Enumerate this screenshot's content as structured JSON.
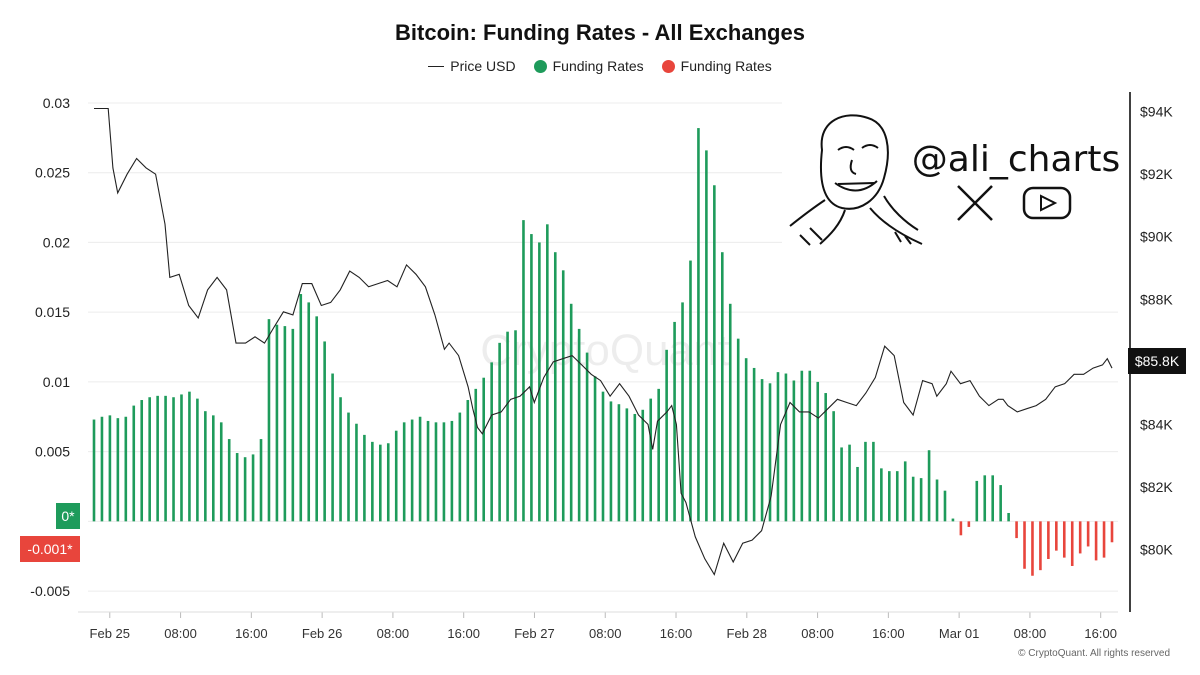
{
  "chart_data": {
    "type": "bar",
    "title": "Bitcoin: Funding Rates - All Exchanges",
    "legend": [
      {
        "name": "Price USD",
        "kind": "line",
        "color": "#222222"
      },
      {
        "name": "Funding Rates",
        "kind": "dot",
        "color": "#1e9b5b"
      },
      {
        "name": "Funding Rates",
        "kind": "dot",
        "color": "#e8453c"
      }
    ],
    "colors": {
      "positive": "#1e9b5b",
      "negative": "#e8453c",
      "price": "#222222"
    },
    "x_labels": [
      "Feb 25",
      "08:00",
      "16:00",
      "Feb 26",
      "08:00",
      "16:00",
      "Feb 27",
      "08:00",
      "16:00",
      "Feb 28",
      "08:00",
      "16:00",
      "Mar 01",
      "08:00",
      "16:00"
    ],
    "x_range_hours": [
      0,
      156
    ],
    "y_left": {
      "ticks": [
        "0.03",
        "0.025",
        "0.02",
        "0.015",
        "0.01",
        "0.005",
        "-0.005"
      ],
      "ylim": [
        -0.0065,
        0.0305
      ]
    },
    "y_right": {
      "ticks": [
        "$94K",
        "$92K",
        "$90K",
        "$88K",
        "$86K",
        "$84K",
        "$82K",
        "$80K"
      ],
      "ylim": [
        78000,
        94500
      ]
    },
    "badges": {
      "zero": "0*",
      "last_funding": "-0.001*",
      "last_price": "$85.8K"
    },
    "funding_rates": [
      0.0073,
      0.0075,
      0.0076,
      0.0074,
      0.0075,
      0.0083,
      0.0087,
      0.0089,
      0.009,
      0.009,
      0.0089,
      0.0091,
      0.0093,
      0.0088,
      0.0079,
      0.0076,
      0.0071,
      0.0059,
      0.0049,
      0.0046,
      0.0048,
      0.0059,
      0.0145,
      0.0141,
      0.014,
      0.0138,
      0.0163,
      0.0157,
      0.0147,
      0.0129,
      0.0106,
      0.0089,
      0.0078,
      0.007,
      0.0062,
      0.0057,
      0.0055,
      0.0056,
      0.0065,
      0.0071,
      0.0073,
      0.0075,
      0.0072,
      0.0071,
      0.0071,
      0.0072,
      0.0078,
      0.0087,
      0.0095,
      0.0103,
      0.0114,
      0.0128,
      0.0136,
      0.0137,
      0.0216,
      0.0206,
      0.02,
      0.0213,
      0.0193,
      0.018,
      0.0156,
      0.0138,
      0.0121,
      0.0104,
      0.0093,
      0.0086,
      0.0084,
      0.0081,
      0.0077,
      0.008,
      0.0088,
      0.0095,
      0.0123,
      0.0143,
      0.0157,
      0.0187,
      0.0282,
      0.0266,
      0.0241,
      0.0193,
      0.0156,
      0.0131,
      0.0117,
      0.011,
      0.0102,
      0.0099,
      0.0107,
      0.0106,
      0.0101,
      0.0108,
      0.0108,
      0.01,
      0.0092,
      0.0079,
      0.0053,
      0.0055,
      0.0039,
      0.0057,
      0.0057,
      0.0038,
      0.0036,
      0.0036,
      0.0043,
      0.0032,
      0.0031,
      0.0051,
      0.003,
      0.0022,
      0.0002,
      -0.001,
      -0.0004,
      0.0029,
      0.0033,
      0.0033,
      0.0026,
      0.0006,
      -0.0012,
      -0.0034,
      -0.0039,
      -0.0035,
      -0.0027,
      -0.0021,
      -0.0026,
      -0.0032,
      -0.0023,
      -0.0018,
      -0.0028,
      -0.0026,
      -0.0015
    ],
    "price_usd": [
      [
        0,
        94100
      ],
      [
        3,
        94100
      ],
      [
        4,
        92200
      ],
      [
        5,
        91400
      ],
      [
        7,
        92000
      ],
      [
        9,
        92500
      ],
      [
        11,
        92200
      ],
      [
        13,
        92000
      ],
      [
        15,
        90400
      ],
      [
        16,
        88700
      ],
      [
        18,
        88800
      ],
      [
        20,
        87800
      ],
      [
        22,
        87400
      ],
      [
        24,
        88300
      ],
      [
        26,
        88700
      ],
      [
        28,
        88300
      ],
      [
        30,
        86600
      ],
      [
        32,
        86600
      ],
      [
        34,
        86800
      ],
      [
        36,
        86600
      ],
      [
        38,
        87100
      ],
      [
        40,
        87600
      ],
      [
        42,
        87500
      ],
      [
        44,
        88500
      ],
      [
        46,
        88500
      ],
      [
        48,
        87800
      ],
      [
        50,
        87900
      ],
      [
        52,
        88300
      ],
      [
        54,
        88900
      ],
      [
        56,
        88700
      ],
      [
        58,
        88400
      ],
      [
        60,
        88500
      ],
      [
        62,
        88600
      ],
      [
        64,
        88400
      ],
      [
        66,
        89100
      ],
      [
        68,
        88800
      ],
      [
        70,
        88400
      ],
      [
        72,
        87500
      ],
      [
        74,
        86400
      ],
      [
        75,
        86600
      ],
      [
        77,
        86200
      ],
      [
        79,
        85200
      ],
      [
        80,
        84500
      ],
      [
        81,
        83900
      ],
      [
        82,
        83700
      ],
      [
        84,
        84300
      ],
      [
        86,
        84400
      ],
      [
        88,
        84800
      ],
      [
        90,
        84900
      ],
      [
        92,
        85200
      ],
      [
        93,
        84700
      ],
      [
        95,
        85500
      ],
      [
        97,
        86000
      ],
      [
        99,
        86100
      ],
      [
        101,
        86200
      ],
      [
        103,
        85900
      ],
      [
        105,
        85600
      ],
      [
        107,
        85400
      ],
      [
        109,
        84900
      ],
      [
        111,
        85300
      ],
      [
        113,
        84900
      ],
      [
        115,
        84300
      ],
      [
        117,
        84000
      ],
      [
        118,
        83200
      ],
      [
        119,
        84100
      ],
      [
        121,
        84400
      ],
      [
        122,
        84600
      ],
      [
        123,
        84000
      ],
      [
        124,
        81800
      ],
      [
        125,
        81500
      ],
      [
        127,
        80400
      ],
      [
        129,
        79700
      ],
      [
        131,
        79200
      ],
      [
        133,
        80200
      ],
      [
        135,
        79600
      ],
      [
        137,
        80200
      ],
      [
        139,
        80300
      ],
      [
        141,
        80600
      ],
      [
        143,
        81700
      ],
      [
        145,
        84000
      ],
      [
        147,
        84700
      ],
      [
        149,
        84400
      ],
      [
        151,
        84400
      ],
      [
        153,
        84200
      ],
      [
        155,
        84500
      ],
      [
        157,
        84800
      ],
      [
        159,
        84700
      ],
      [
        161,
        84600
      ],
      [
        163,
        85000
      ],
      [
        165,
        85500
      ],
      [
        167,
        86500
      ],
      [
        169,
        86200
      ],
      [
        171,
        84700
      ],
      [
        173,
        84300
      ],
      [
        175,
        85400
      ],
      [
        177,
        85300
      ],
      [
        178,
        84900
      ],
      [
        180,
        85300
      ],
      [
        181,
        85700
      ],
      [
        183,
        85300
      ],
      [
        185,
        85400
      ],
      [
        187,
        84900
      ],
      [
        189,
        84600
      ],
      [
        191,
        84800
      ],
      [
        192,
        84800
      ],
      [
        193,
        84600
      ],
      [
        195,
        84400
      ],
      [
        197,
        84500
      ],
      [
        199,
        84600
      ],
      [
        201,
        84800
      ],
      [
        203,
        85200
      ],
      [
        205,
        85300
      ],
      [
        207,
        85600
      ],
      [
        209,
        85600
      ],
      [
        211,
        85800
      ],
      [
        213,
        85900
      ],
      [
        214,
        86100
      ],
      [
        215,
        85800
      ]
    ]
  },
  "watermark": {
    "handle": "@ali_charts",
    "brand_center": "CryptoQuant"
  },
  "footer": "© CryptoQuant. All rights reserved"
}
